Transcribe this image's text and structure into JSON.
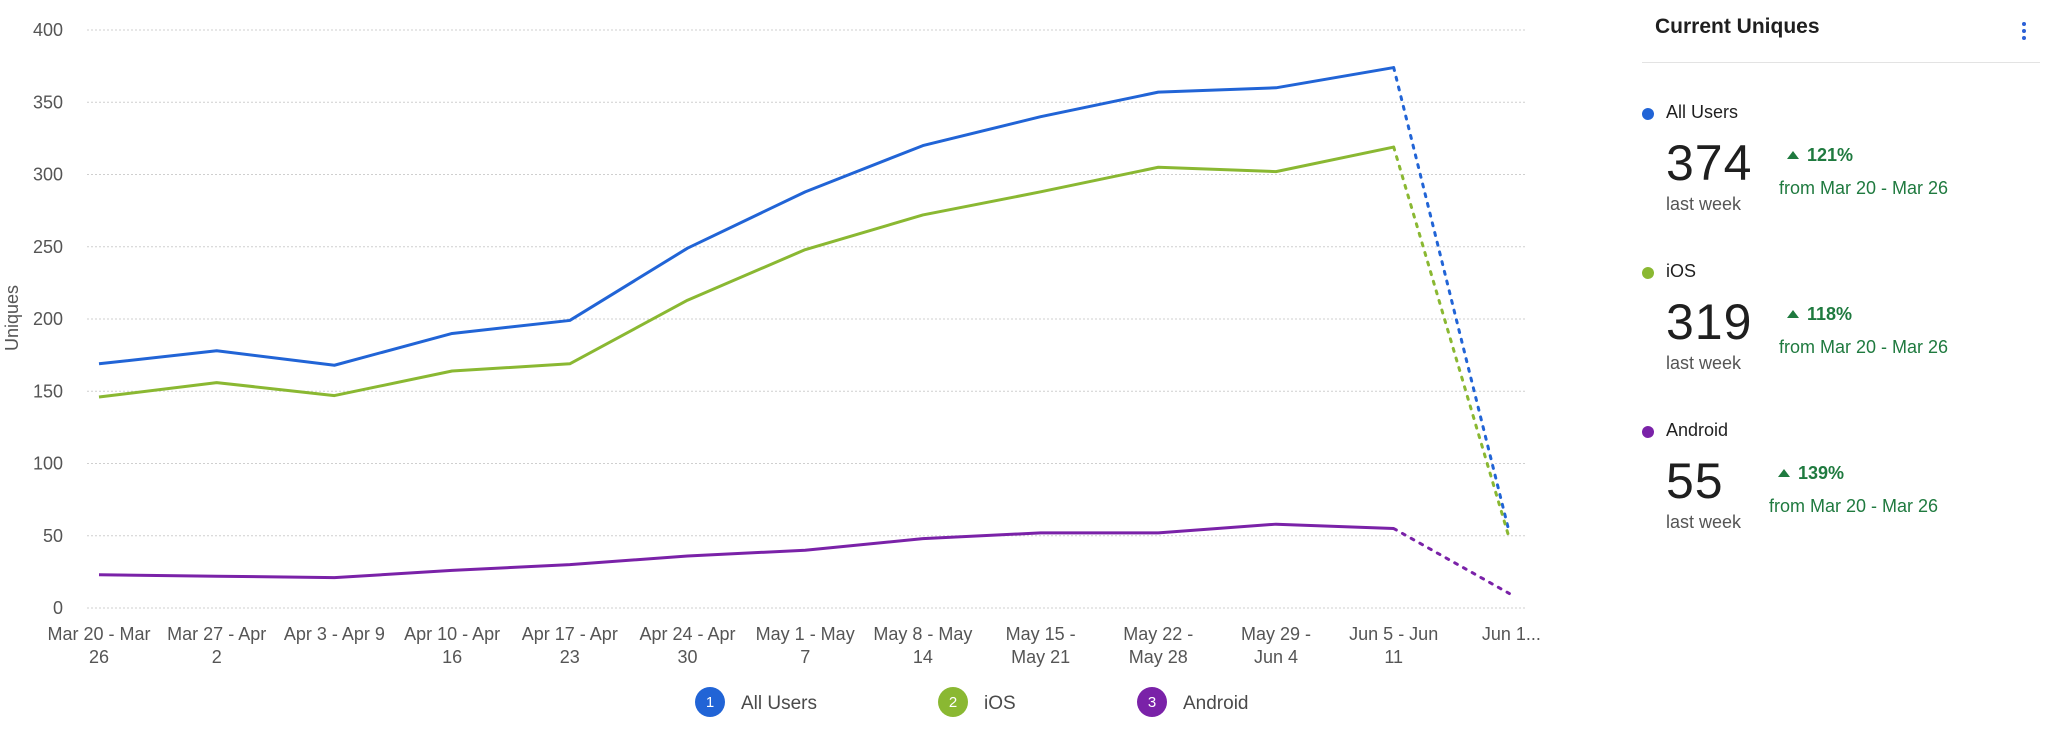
{
  "chart_data": {
    "type": "line",
    "title": "",
    "xlabel": "",
    "ylabel": "Uniques",
    "ylim": [
      0,
      400
    ],
    "yticks": [
      0,
      50,
      100,
      150,
      200,
      250,
      300,
      350,
      400
    ],
    "grid": true,
    "legend_position": "bottom",
    "categories": [
      [
        "Mar 20 - Mar",
        "26"
      ],
      [
        "Mar 27 - Apr",
        "2"
      ],
      [
        "Apr 3 - Apr 9"
      ],
      [
        "Apr 10 - Apr",
        "16"
      ],
      [
        "Apr 17 - Apr",
        "23"
      ],
      [
        "Apr 24 - Apr",
        "30"
      ],
      [
        "May 1 - May",
        "7"
      ],
      [
        "May 8 - May",
        "14"
      ],
      [
        "May 15 -",
        "May 21"
      ],
      [
        "May 22 -",
        "May 28"
      ],
      [
        "May 29 -",
        "Jun 4"
      ],
      [
        "Jun 5 - Jun",
        "11"
      ],
      [
        "Jun 1..."
      ]
    ],
    "series": [
      {
        "name": "All Users",
        "number": "1",
        "color": "#2164d6",
        "values": [
          169,
          178,
          168,
          190,
          199,
          249,
          288,
          320,
          340,
          357,
          360,
          374,
          52
        ]
      },
      {
        "name": "iOS",
        "number": "2",
        "color": "#8ab832",
        "values": [
          146,
          156,
          147,
          164,
          169,
          213,
          248,
          272,
          288,
          305,
          302,
          319,
          48
        ]
      },
      {
        "name": "Android",
        "number": "3",
        "color": "#7a22a8",
        "values": [
          23,
          22,
          21,
          26,
          30,
          36,
          40,
          48,
          52,
          52,
          58,
          55,
          10
        ]
      }
    ],
    "incomplete_last_point": true
  },
  "panel": {
    "title": "Current Uniques",
    "menu_icon": "more-vertical-icon",
    "metrics": [
      {
        "name": "All Users",
        "color": "#2164d6",
        "value": "374",
        "sub": "last week",
        "change": "121%",
        "from": "from Mar 20 - Mar 26"
      },
      {
        "name": "iOS",
        "color": "#8ab832",
        "value": "319",
        "sub": "last week",
        "change": "118%",
        "from": "from Mar 20 - Mar 26"
      },
      {
        "name": "Android",
        "color": "#7a22a8",
        "value": "55",
        "sub": "last week",
        "change": "139%",
        "from": "from Mar 20 - Mar 26"
      }
    ]
  }
}
